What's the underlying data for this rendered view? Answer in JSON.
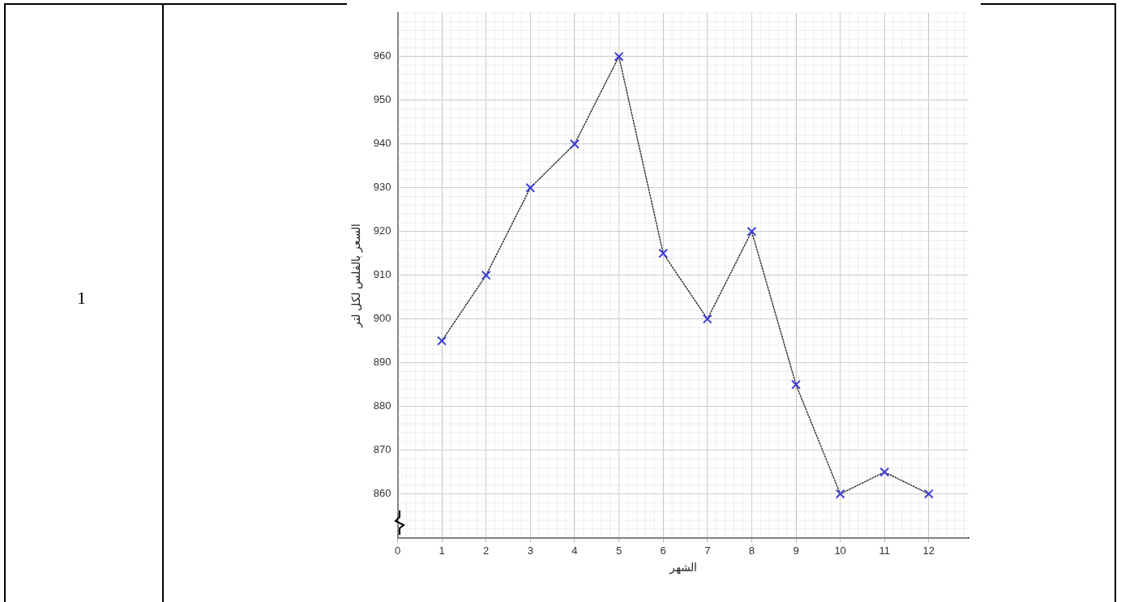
{
  "chart_data": {
    "type": "line",
    "xlabel": "الشهر",
    "ylabel": "السعر بالفلس لكل لتر",
    "annotations": [
      "1"
    ],
    "x": [
      1,
      2,
      3,
      4,
      5,
      6,
      7,
      8,
      9,
      10,
      11,
      12
    ],
    "series": [
      {
        "color": "#3d3dd8",
        "values": [
          895,
          910,
          930,
          940,
          960,
          915,
          900,
          920,
          885,
          860,
          865,
          860
        ]
      }
    ],
    "xlim": [
      0,
      12.9
    ],
    "xticks": [
      0,
      1,
      2,
      3,
      4,
      5,
      6,
      7,
      8,
      9,
      10,
      11,
      12
    ],
    "ylim": [
      850,
      970
    ],
    "yticks": [
      860,
      870,
      880,
      890,
      900,
      910,
      920,
      930,
      940,
      950,
      960
    ],
    "grid": true,
    "legend": false,
    "marker": "cross",
    "line_style": "dotted"
  }
}
